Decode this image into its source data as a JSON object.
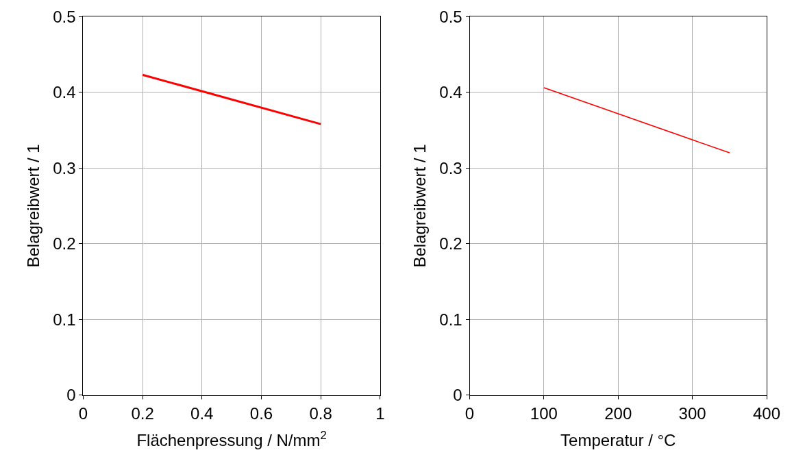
{
  "chart_data": [
    {
      "type": "line",
      "xlabel": "Flächenpressung / N/mm$^{2}$",
      "ylabel": "Belagreibwert / 1",
      "x": [
        0.2,
        0.8
      ],
      "series": [
        {
          "color": "#ff0000",
          "values": [
            0.423,
            0.358
          ]
        }
      ],
      "xlim": [
        0,
        1
      ],
      "xticks": [
        0,
        0.2,
        0.4,
        0.6,
        0.8,
        1
      ],
      "ylim": [
        0,
        0.5
      ],
      "yticks": [
        0,
        0.1,
        0.2,
        0.3,
        0.4,
        0.5
      ],
      "grid": true,
      "marker": "none",
      "line_style": "solid"
    },
    {
      "type": "line",
      "xlabel": "Temperatur / °C",
      "ylabel": "Belagreibwert / 1",
      "x": [
        100,
        350
      ],
      "series": [
        {
          "color": "#ff0000",
          "values": [
            0.406,
            0.32
          ]
        }
      ],
      "xlim": [
        0,
        400
      ],
      "xticks": [
        0,
        100,
        200,
        300,
        400
      ],
      "ylim": [
        0,
        0.5
      ],
      "yticks": [
        0,
        0.1,
        0.2,
        0.3,
        0.4,
        0.5
      ],
      "grid": true,
      "marker": "none",
      "line_style": "solid"
    }
  ]
}
